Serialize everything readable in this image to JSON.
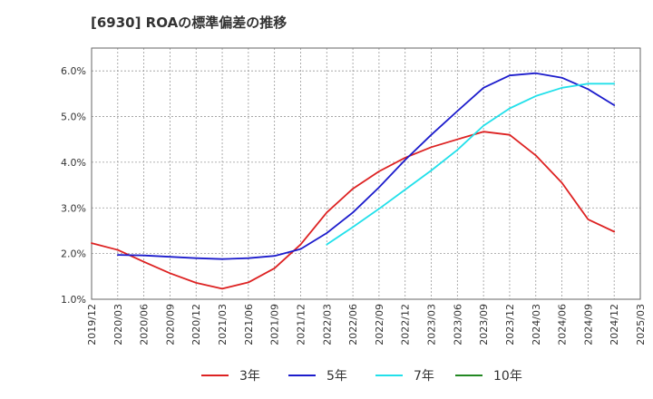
{
  "chart_data": {
    "type": "line",
    "title": "[6930]  ROAの標準偏差の推移",
    "xlabel": "",
    "ylabel": "",
    "x": [
      "2019/12",
      "2020/03",
      "2020/06",
      "2020/09",
      "2020/12",
      "2021/03",
      "2021/06",
      "2021/09",
      "2021/12",
      "2022/03",
      "2022/06",
      "2022/09",
      "2022/12",
      "2023/03",
      "2023/06",
      "2023/09",
      "2023/12",
      "2024/03",
      "2024/06",
      "2024/09",
      "2024/12",
      "2025/03"
    ],
    "ylim": [
      1.0,
      6.5
    ],
    "yticks": [
      1.0,
      2.0,
      3.0,
      4.0,
      5.0,
      6.0
    ],
    "ytick_labels": [
      "1.0%",
      "2.0%",
      "3.0%",
      "4.0%",
      "5.0%",
      "6.0%"
    ],
    "grid": true,
    "legend_position": "bottom",
    "series": [
      {
        "name": "3年",
        "color": "#dd2222",
        "values": [
          2.23,
          2.08,
          1.82,
          1.57,
          1.36,
          1.23,
          1.37,
          1.68,
          2.2,
          2.9,
          3.42,
          3.8,
          4.1,
          4.33,
          4.5,
          4.67,
          4.6,
          4.15,
          3.55,
          2.75,
          2.48,
          null
        ]
      },
      {
        "name": "5年",
        "color": "#1c1ccc",
        "values": [
          null,
          1.97,
          1.96,
          1.93,
          1.9,
          1.88,
          1.9,
          1.95,
          2.1,
          2.45,
          2.9,
          3.45,
          4.05,
          4.6,
          5.12,
          5.63,
          5.9,
          5.95,
          5.85,
          5.6,
          5.25,
          null
        ]
      },
      {
        "name": "7年",
        "color": "#22e0ea",
        "values": [
          null,
          null,
          null,
          null,
          null,
          null,
          null,
          null,
          null,
          2.2,
          2.58,
          2.98,
          3.4,
          3.82,
          4.27,
          4.8,
          5.18,
          5.45,
          5.63,
          5.72,
          5.72,
          null
        ]
      },
      {
        "name": "10年",
        "color": "#228822",
        "values": [
          null,
          null,
          null,
          null,
          null,
          null,
          null,
          null,
          null,
          null,
          null,
          null,
          null,
          null,
          null,
          null,
          null,
          null,
          null,
          null,
          null,
          null
        ]
      }
    ]
  }
}
